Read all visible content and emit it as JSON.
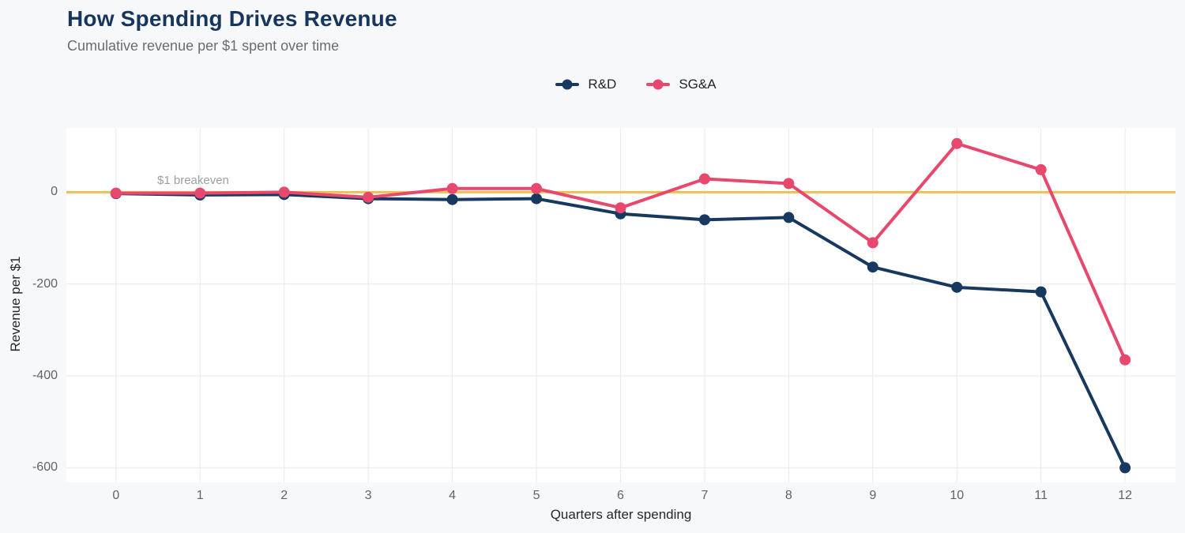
{
  "chart_data": {
    "type": "line",
    "title": "How Spending Drives Revenue",
    "subtitle": "Cumulative revenue per $1 spent over time",
    "xlabel": "Quarters after spending",
    "ylabel": "Revenue per $1",
    "x": [
      0,
      1,
      2,
      3,
      4,
      5,
      6,
      7,
      8,
      9,
      10,
      11,
      12
    ],
    "series": [
      {
        "name": "R&D",
        "color": "#17395f",
        "values": [
          -3,
          -6,
          -5,
          -14,
          -16,
          -14,
          -47,
          -60,
          -55,
          -163,
          -207,
          -217,
          -600
        ]
      },
      {
        "name": "SG&A",
        "color": "#e8486d",
        "values": [
          -2,
          -2,
          0,
          -11,
          8,
          8,
          -34,
          29,
          19,
          -110,
          106,
          49,
          -365
        ]
      }
    ],
    "reference_line": {
      "value": 0,
      "label": "$1 breakeven",
      "color": "#e9c351"
    },
    "x_ticks": [
      0,
      1,
      2,
      3,
      4,
      5,
      6,
      7,
      8,
      9,
      10,
      11,
      12
    ],
    "y_ticks": [
      0,
      -200,
      -400,
      -600
    ],
    "xlim": [
      -0.59,
      12.6
    ],
    "ylim": [
      -632,
      140
    ],
    "grid": true,
    "legend_position": "top",
    "colors": {
      "page_background": "#f7f8fa",
      "plot_background": "#ffffff",
      "grid": "#e8e9eb",
      "title": "#17365d",
      "subtitle": "#696e73",
      "tick_label": "#5f6469",
      "axis_title": "#24282c",
      "annotation": "#9aa0a6"
    }
  }
}
